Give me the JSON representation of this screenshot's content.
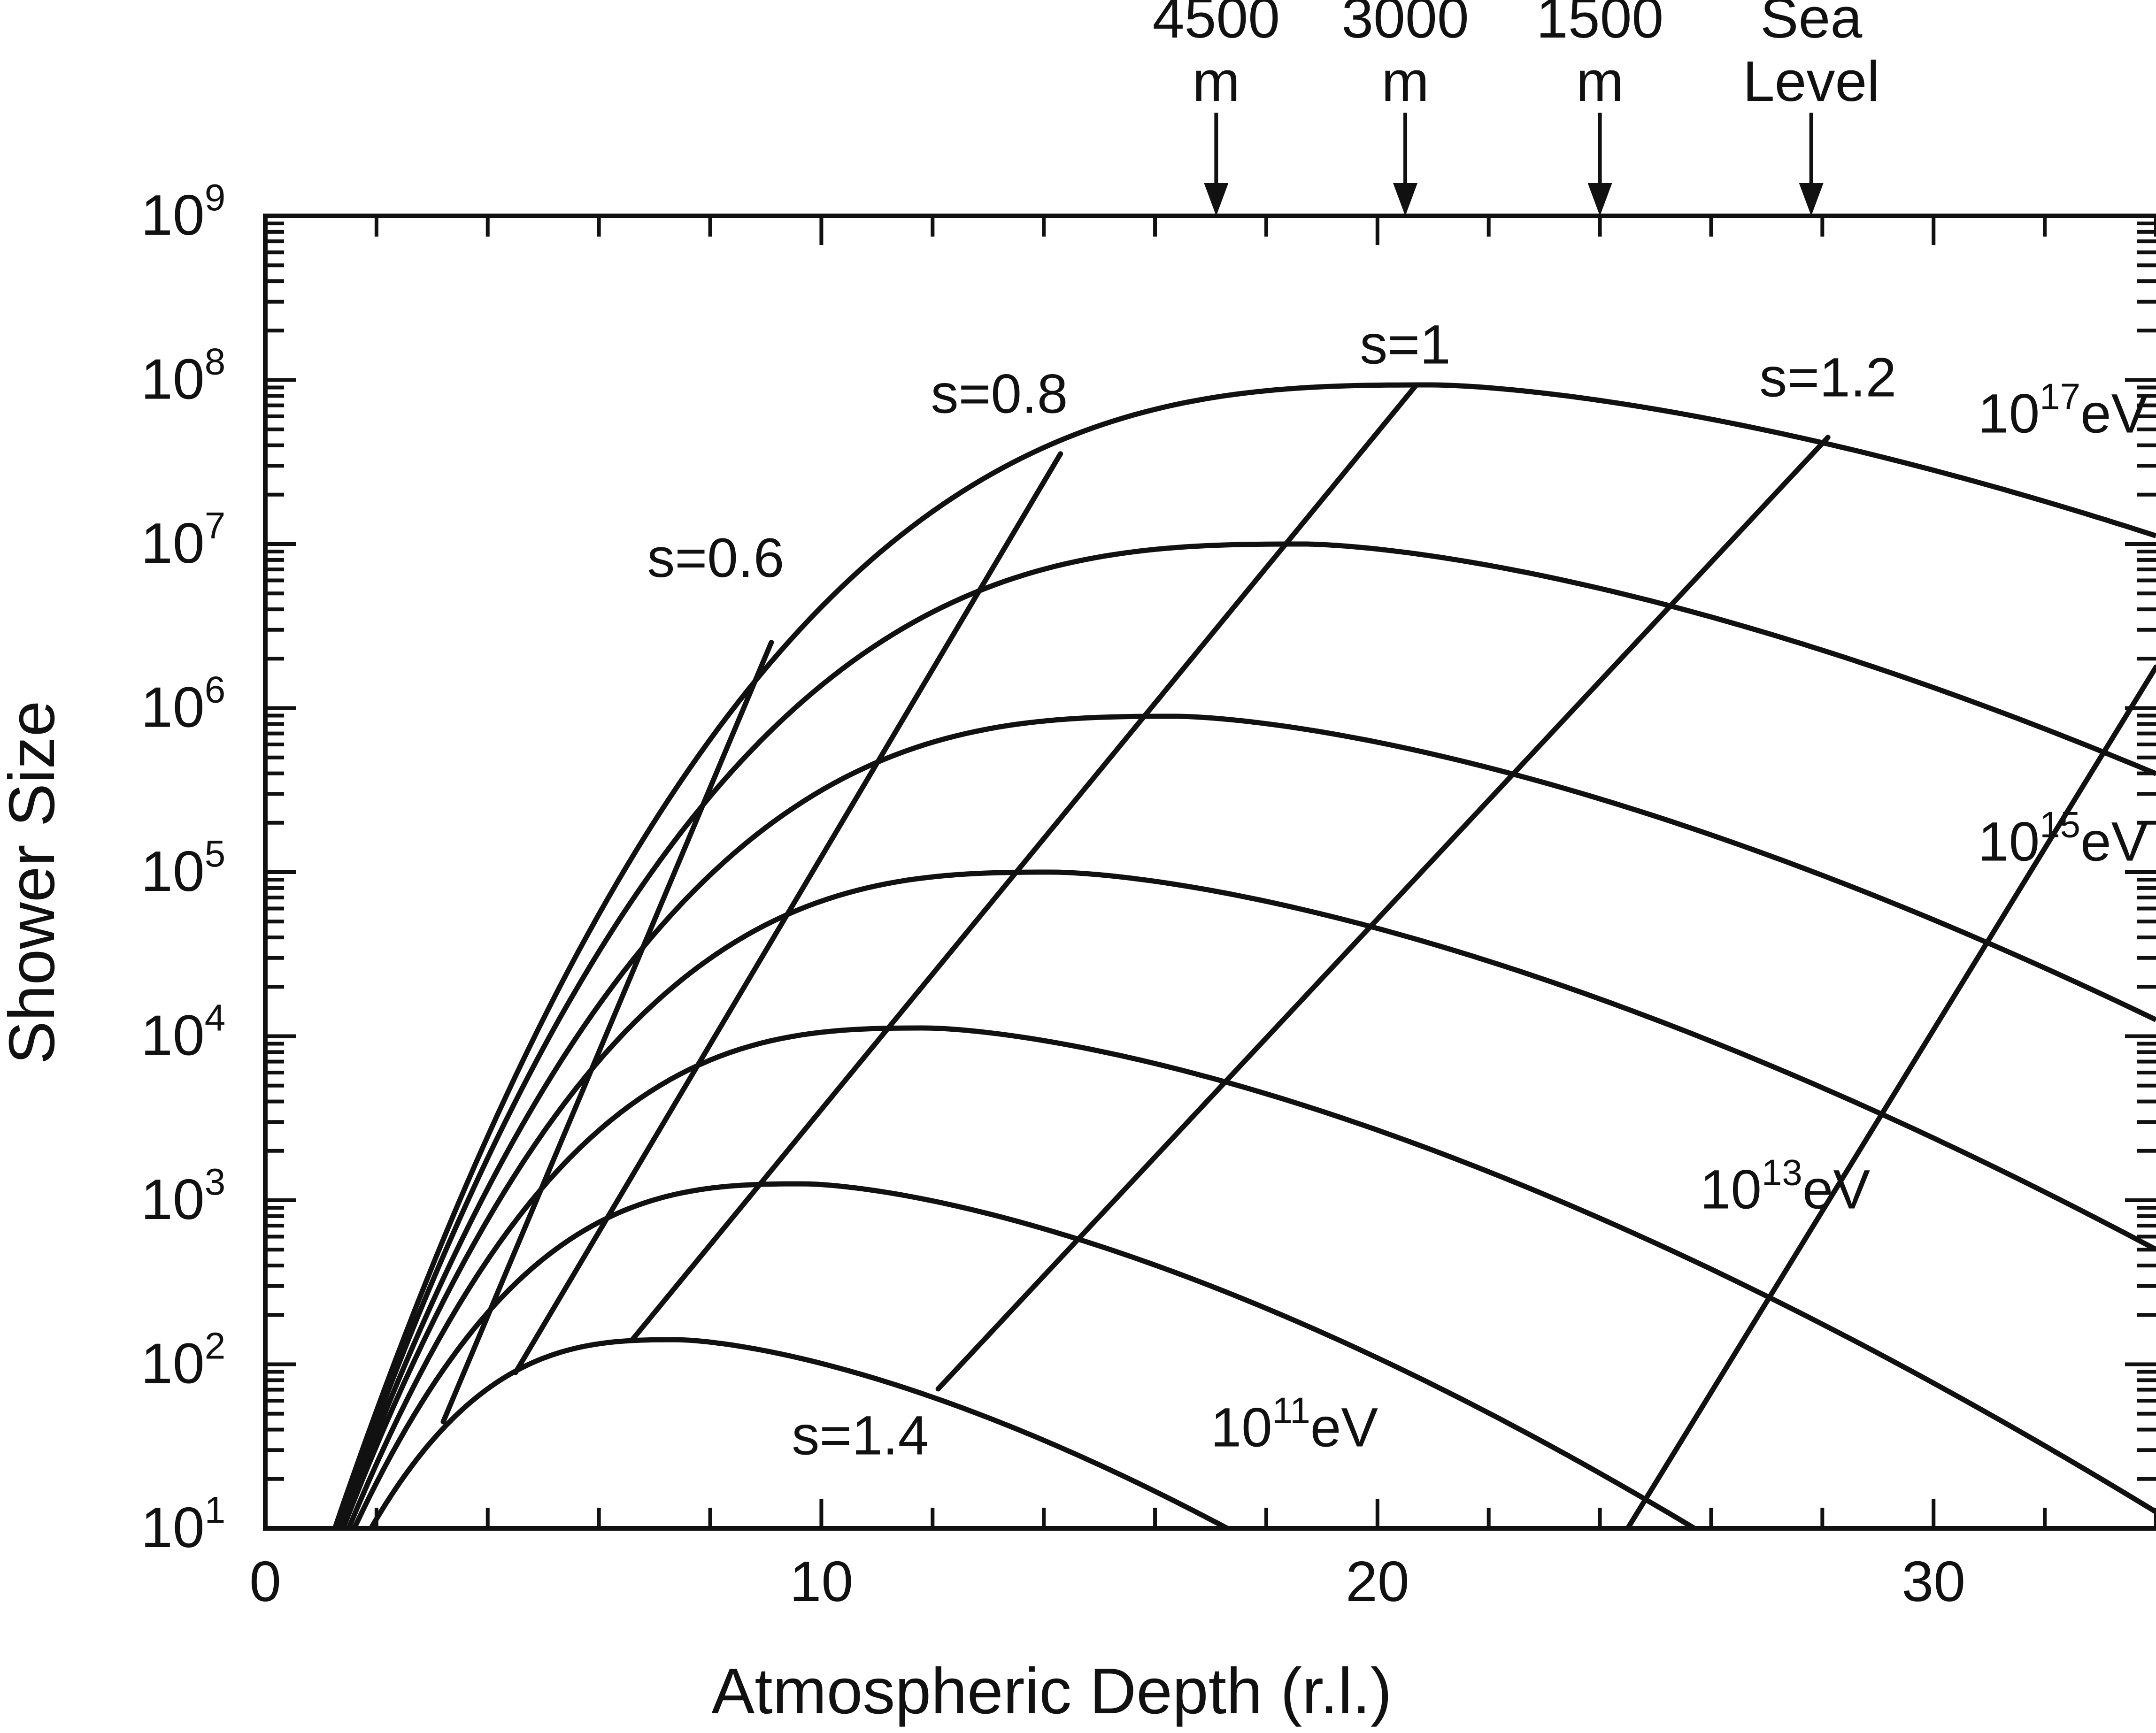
{
  "chart_data": {
    "type": "line",
    "xlabel": "Atmospheric Depth (r.l.)",
    "ylabel": "Shower Size",
    "xlim": [
      0,
      34
    ],
    "ylim": [
      1,
      9
    ],
    "y_scale": "log10",
    "grid": false,
    "x_ticks": [
      {
        "value": 0,
        "label": "0"
      },
      {
        "value": 10,
        "label": "10"
      },
      {
        "value": 20,
        "label": "20"
      },
      {
        "value": 30,
        "label": "30"
      }
    ],
    "y_ticks": [
      {
        "value": 1,
        "base": "10",
        "exp": "1"
      },
      {
        "value": 2,
        "base": "10",
        "exp": "2"
      },
      {
        "value": 3,
        "base": "10",
        "exp": "3"
      },
      {
        "value": 4,
        "base": "10",
        "exp": "4"
      },
      {
        "value": 5,
        "base": "10",
        "exp": "5"
      },
      {
        "value": 6,
        "base": "10",
        "exp": "6"
      },
      {
        "value": 7,
        "base": "10",
        "exp": "7"
      },
      {
        "value": 8,
        "base": "10",
        "exp": "8"
      },
      {
        "value": 9,
        "base": "10",
        "exp": "9"
      }
    ],
    "altitude_markers": [
      {
        "depth": 17.1,
        "line1": "4500",
        "line2": "m"
      },
      {
        "depth": 20.5,
        "line1": "3000",
        "line2": "m"
      },
      {
        "depth": 24.0,
        "line1": "1500",
        "line2": "m"
      },
      {
        "depth": 27.8,
        "line1": "Sea",
        "line2": "Level"
      }
    ],
    "energy_curves": [
      {
        "log_energy": 11,
        "peak_t": 7.4,
        "peak_logN": 2.15,
        "x": [
          1.9,
          7.4,
          17.3
        ],
        "log_size": [
          1,
          2.15,
          1
        ]
      },
      {
        "log_energy": 12,
        "peak_t": 9.7,
        "peak_logN": 3.1,
        "x": [
          1.6,
          9.7,
          25.7
        ],
        "log_size": [
          1,
          3.1,
          1
        ]
      },
      {
        "log_energy": 13,
        "peak_t": 11.9,
        "peak_logN": 4.05,
        "x": [
          1.5,
          11.9,
          34
        ],
        "log_size": [
          1,
          4.05,
          1.1
        ]
      },
      {
        "log_energy": 14,
        "peak_t": 14.2,
        "peak_logN": 5.0,
        "x": [
          1.4,
          14.2,
          34
        ],
        "log_size": [
          1,
          5.0,
          2.7
        ]
      },
      {
        "log_energy": 15,
        "peak_t": 16.4,
        "peak_logN": 5.95,
        "x": [
          1.35,
          16.4,
          34
        ],
        "log_size": [
          1,
          5.95,
          4.1
        ]
      },
      {
        "log_energy": 16,
        "peak_t": 18.7,
        "peak_logN": 7.0,
        "x": [
          1.3,
          18.7,
          34
        ],
        "log_size": [
          1,
          7.0,
          5.6
        ]
      },
      {
        "log_energy": 17,
        "peak_t": 21.0,
        "peak_logN": 7.97,
        "x": [
          1.25,
          21.0,
          34
        ],
        "log_size": [
          1,
          7.97,
          7.05
        ]
      }
    ],
    "energy_labels": [
      {
        "base": "10",
        "exp": "11",
        "unit": "eV",
        "x": 17.0,
        "logN": 1.5
      },
      {
        "base": "10",
        "exp": "13",
        "unit": "eV",
        "x": 25.8,
        "logN": 2.95
      },
      {
        "base": "10",
        "exp": "15",
        "unit": "eV",
        "x": 30.8,
        "logN": 5.07
      },
      {
        "base": "10",
        "exp": "17",
        "unit": "eV",
        "x": 30.8,
        "logN": 7.68
      }
    ],
    "age_lines": [
      {
        "s": 0.6,
        "label": "s=0.6",
        "x": [
          3.2,
          9.1
        ],
        "log_size": [
          1.65,
          6.4
        ],
        "label_x": 8.1,
        "label_logN": 6.8
      },
      {
        "s": 0.8,
        "label": "s=0.8",
        "x": [
          4.5,
          14.3
        ],
        "log_size": [
          1.95,
          7.55
        ],
        "label_x": 13.2,
        "label_logN": 7.8
      },
      {
        "s": 1.0,
        "label": "s=1",
        "x": [
          6.6,
          20.7
        ],
        "log_size": [
          2.15,
          7.97
        ],
        "label_x": 20.5,
        "label_logN": 8.1
      },
      {
        "s": 1.2,
        "label": "s=1.2",
        "x": [
          12.1,
          28.1
        ],
        "log_size": [
          1.85,
          7.65
        ],
        "label_x": 28.1,
        "label_logN": 7.9
      },
      {
        "s": 1.4,
        "label": "s=1.4",
        "x": [
          24.5,
          34
        ],
        "log_size": [
          1.0,
          6.25
        ],
        "label_x": 10.7,
        "label_logN": 1.45
      }
    ]
  }
}
